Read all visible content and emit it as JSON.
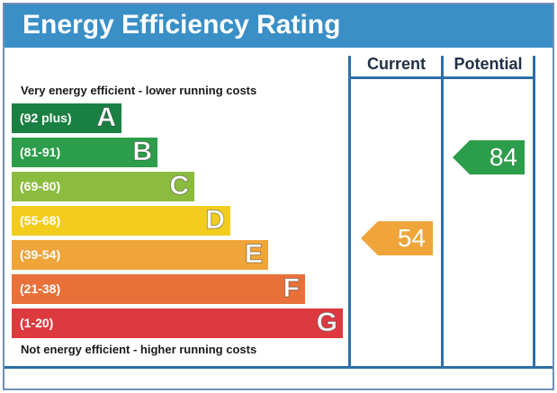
{
  "title": "Energy Efficiency Rating",
  "columns": {
    "current": "Current",
    "potential": "Potential"
  },
  "captions": {
    "top": "Very energy efficient - lower running costs",
    "bottom": "Not energy efficient - higher running costs"
  },
  "bands": [
    {
      "range": "(92 plus)",
      "letter": "A",
      "color": "#1a8042"
    },
    {
      "range": "(81-91)",
      "letter": "B",
      "color": "#2c9d4a"
    },
    {
      "range": "(69-80)",
      "letter": "C",
      "color": "#8cbc3f"
    },
    {
      "range": "(55-68)",
      "letter": "D",
      "color": "#f3cd1e"
    },
    {
      "range": "(39-54)",
      "letter": "E",
      "color": "#efa53a"
    },
    {
      "range": "(21-38)",
      "letter": "F",
      "color": "#e8713a"
    },
    {
      "range": "(1-20)",
      "letter": "G",
      "color": "#dd3a40"
    }
  ],
  "ratings": {
    "current": {
      "value": "54",
      "band": "E",
      "color": "#efa53a"
    },
    "potential": {
      "value": "84",
      "band": "B",
      "color": "#2c9d4a"
    }
  }
}
